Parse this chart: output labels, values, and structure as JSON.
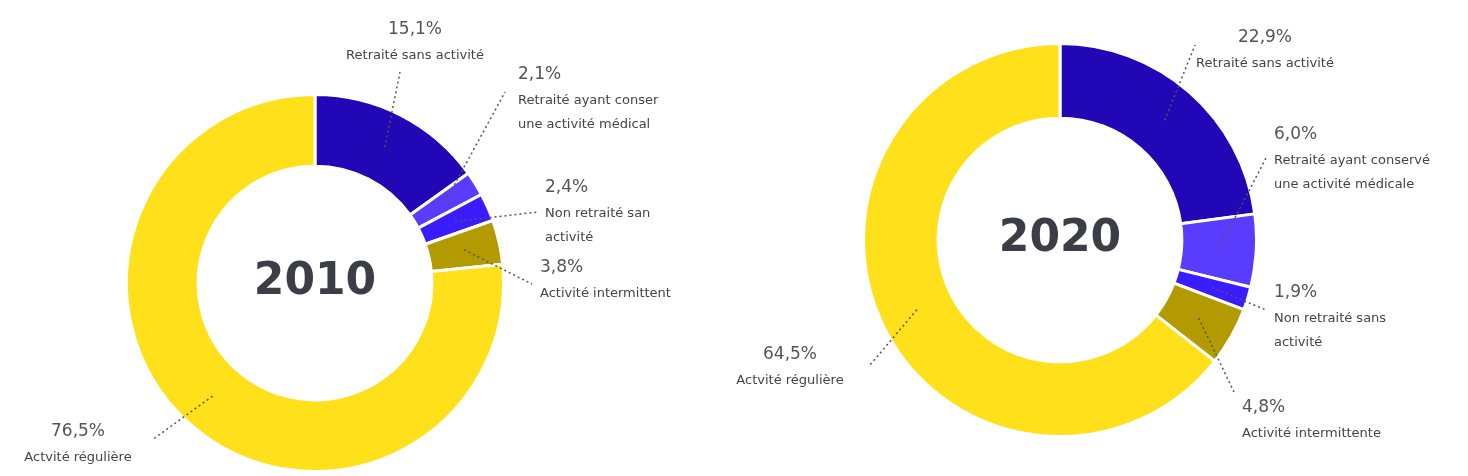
{
  "chart_data": [
    {
      "type": "donut",
      "title": "2010",
      "categories": [
        "Retraité sans activité",
        "Retraité ayant conser\nune activité médical",
        "Non retraité san\nactivité",
        "Activité intermittent",
        "Actvité régulière"
      ],
      "values": [
        15.1,
        2.1,
        2.4,
        3.8,
        76.5
      ],
      "value_labels": [
        "15,1%",
        "2,1%",
        "2,4%",
        "3,8%",
        "76,5%"
      ],
      "colors": [
        "#2107b5",
        "#5a3cff",
        "#3a1cff",
        "#b39a00",
        "#ffe01a"
      ],
      "legend": false
    },
    {
      "type": "donut",
      "title": "2020",
      "categories": [
        "Retraité sans activité",
        "Retraité ayant conservé\nune activité médicale",
        "Non retraité sans\nactivité",
        "Activité intermittente",
        "Actvité régulière"
      ],
      "values": [
        22.9,
        6.0,
        1.9,
        4.8,
        64.5
      ],
      "value_labels": [
        "22,9%",
        "6,0%",
        "1,9%",
        "4,8%",
        "64,5%"
      ],
      "colors": [
        "#2107b5",
        "#5a3cff",
        "#3a1cff",
        "#b39a00",
        "#ffe01a"
      ],
      "legend": false
    }
  ]
}
